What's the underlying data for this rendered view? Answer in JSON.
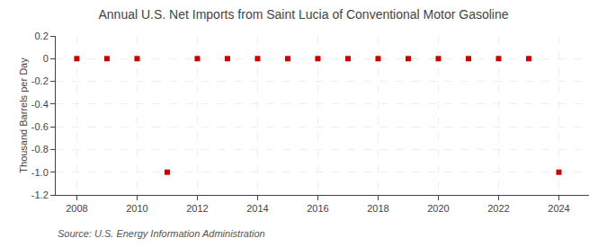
{
  "chart_data": {
    "type": "scatter",
    "title": "Annual U.S. Net Imports from Saint Lucia of Conventional Motor Gasoline",
    "y_label": "Thousand Barrels per Day",
    "annotations": [
      "Source: U.S. Energy Information Administration"
    ],
    "x": [
      2008,
      2009,
      2010,
      2011,
      2012,
      2013,
      2014,
      2015,
      2016,
      2017,
      2018,
      2019,
      2020,
      2021,
      2022,
      2023,
      2024
    ],
    "values": [
      0,
      0,
      0,
      -1,
      0,
      0,
      0,
      0,
      0,
      0,
      0,
      0,
      0,
      0,
      0,
      0,
      -1
    ],
    "color": "#cc0000",
    "marker": "square",
    "xlim": [
      2007.3,
      2025.0
    ],
    "xticks": [
      2008,
      2010,
      2012,
      2014,
      2016,
      2018,
      2020,
      2022,
      2024
    ],
    "ylim": [
      -1.2,
      0.2
    ],
    "yticks": [
      -1.2,
      {
        "value": -1.0,
        "label": "-1.0"
      },
      -0.8,
      -0.6,
      -0.4,
      -0.2,
      0,
      0.2
    ],
    "grid": true
  }
}
